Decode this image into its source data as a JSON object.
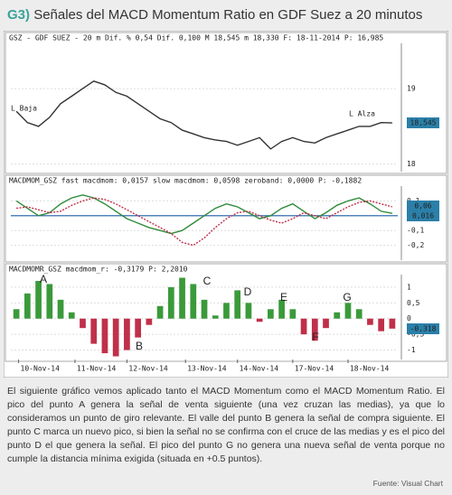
{
  "header": {
    "label": "G3)",
    "title": "Señales del MACD Momentum Ratio en GDF Suez a 20 minutos"
  },
  "chart_data": [
    {
      "type": "line",
      "title": "GSZ - GDF SUEZ - 20 m  Dif. %  0,54  Dif.  0,100  M  18,545  m  18,330  F: 18-11-2014  P: 16,985",
      "x": [
        0,
        1,
        2,
        3,
        4,
        5,
        6,
        7,
        8,
        9,
        10,
        11,
        12,
        13,
        14,
        15,
        16,
        17,
        18,
        19,
        20,
        21,
        22,
        23,
        24,
        25,
        26,
        27,
        28,
        29,
        30,
        31,
        32,
        33,
        34
      ],
      "series": [
        {
          "name": "GSZ",
          "color": "#333333",
          "values": [
            18.7,
            18.55,
            18.5,
            18.62,
            18.8,
            18.9,
            19.0,
            19.1,
            19.05,
            18.95,
            18.9,
            18.8,
            18.7,
            18.6,
            18.55,
            18.45,
            18.4,
            18.35,
            18.32,
            18.3,
            18.25,
            18.3,
            18.35,
            18.2,
            18.3,
            18.35,
            18.3,
            18.28,
            18.35,
            18.4,
            18.45,
            18.5,
            18.5,
            18.55,
            18.545
          ]
        }
      ],
      "xlim": [
        -0.5,
        34.5
      ],
      "ylim": [
        17.9,
        19.6
      ],
      "yticks": [
        18,
        19
      ],
      "annotations": [
        "L Baja",
        "L Alza",
        "18,545"
      ]
    },
    {
      "type": "line",
      "title": "MACDMOM_GSZ fast macdmom: 0,0157  slow macdmom: 0,0598  zeroband: 0,0000  P: -0,1882",
      "x": [
        0,
        1,
        2,
        3,
        4,
        5,
        6,
        7,
        8,
        9,
        10,
        11,
        12,
        13,
        14,
        15,
        16,
        17,
        18,
        19,
        20,
        21,
        22,
        23,
        24,
        25,
        26,
        27,
        28,
        29,
        30,
        31,
        32,
        33,
        34
      ],
      "series": [
        {
          "name": "fast macdmom",
          "color": "#2e8b3a",
          "values": [
            0.1,
            0.05,
            0,
            0.02,
            0.08,
            0.12,
            0.14,
            0.12,
            0.08,
            0.03,
            -0.02,
            -0.05,
            -0.08,
            -0.1,
            -0.12,
            -0.1,
            -0.05,
            0,
            0.05,
            0.08,
            0.06,
            0.02,
            -0.02,
            0,
            0.05,
            0.08,
            0.03,
            -0.02,
            0.02,
            0.07,
            0.1,
            0.12,
            0.08,
            0.03,
            0.0157
          ]
        },
        {
          "name": "slow macdmom",
          "color": "#c0304a",
          "values": [
            0.05,
            0.06,
            0.04,
            0.02,
            0.03,
            0.07,
            0.1,
            0.12,
            0.11,
            0.08,
            0.04,
            0,
            -0.04,
            -0.08,
            -0.12,
            -0.18,
            -0.2,
            -0.15,
            -0.08,
            -0.02,
            0.02,
            0.03,
            0,
            -0.03,
            -0.05,
            -0.02,
            0.02,
            0,
            -0.02,
            0.02,
            0.06,
            0.09,
            0.1,
            0.08,
            0.0598
          ]
        }
      ],
      "zeroband": 0,
      "zeroband_color": "#1f5fa8",
      "xlim": [
        -0.5,
        34.5
      ],
      "ylim": [
        -0.3,
        0.2
      ],
      "yticks": [
        {
          "value": 0.1,
          "label": "0,1"
        },
        0,
        {
          "value": -0.1,
          "label": "-0,1"
        },
        {
          "value": -0.2,
          "label": "-0,2"
        }
      ],
      "annotations": [
        "0,06",
        "0,016"
      ]
    },
    {
      "type": "bar",
      "title": "MACDMOMR_GSZ macdmom_r: -0,3179  P: 2,2010",
      "x": [
        0,
        1,
        2,
        3,
        4,
        5,
        6,
        7,
        8,
        9,
        10,
        11,
        12,
        13,
        14,
        15,
        16,
        17,
        18,
        19,
        20,
        21,
        22,
        23,
        24,
        25,
        26,
        27,
        28,
        29,
        30,
        31,
        32,
        33,
        34
      ],
      "values": [
        0.3,
        0.8,
        1.2,
        1.1,
        0.6,
        0.2,
        -0.3,
        -0.8,
        -1.1,
        -1.2,
        -1.0,
        -0.6,
        -0.2,
        0.4,
        1.0,
        1.3,
        1.1,
        0.6,
        0.1,
        0.5,
        0.9,
        0.5,
        -0.1,
        0.3,
        0.6,
        0.3,
        -0.5,
        -0.7,
        -0.3,
        0.2,
        0.5,
        0.3,
        -0.2,
        -0.4,
        -0.318
      ],
      "positive_color": "#3a9a3a",
      "negative_color": "#c0304a",
      "xlim": [
        -0.5,
        34.5
      ],
      "ylim": [
        -1.3,
        1.4
      ],
      "yticks": [
        1,
        {
          "value": 0.5,
          "label": "0,5"
        },
        0,
        {
          "value": -0.5,
          "label": "-0,5"
        },
        -1
      ],
      "xticks": [
        {
          "value": 0.2,
          "label": "10-Nov-14"
        },
        {
          "value": 5.3,
          "label": "11-Nov-14"
        },
        {
          "value": 10,
          "label": "12-Nov-14"
        },
        {
          "value": 15.3,
          "label": "13-Nov-14"
        },
        {
          "value": 20,
          "label": "14-Nov-14"
        },
        {
          "value": 25,
          "label": "17-Nov-14"
        },
        {
          "value": 30,
          "label": "18-Nov-14"
        }
      ],
      "annotations": [
        "A",
        "B",
        "C",
        "D",
        "E",
        "F",
        "G",
        "-0,318"
      ]
    }
  ],
  "body": "El siguiente gráfico vemos aplicado tanto el MACD Momentum como el MACD Momentum Ratio. El pico del punto A genera la señal de venta siguiente (una vez cruzan las medias), ya que lo consideramos un punto de giro relevante. El valle del punto B genera la señal de compra siguiente. El punto C marca un nuevo pico, si bien la señal no se confirma con el cruce de las medias y es el  pico del punto D el que genera la señal. El pico del punto G no genera una nueva señal de venta porque no cumple la distancia mínima exigida (situada en +0.5 puntos).",
  "source": "Fuente: Visual Chart"
}
